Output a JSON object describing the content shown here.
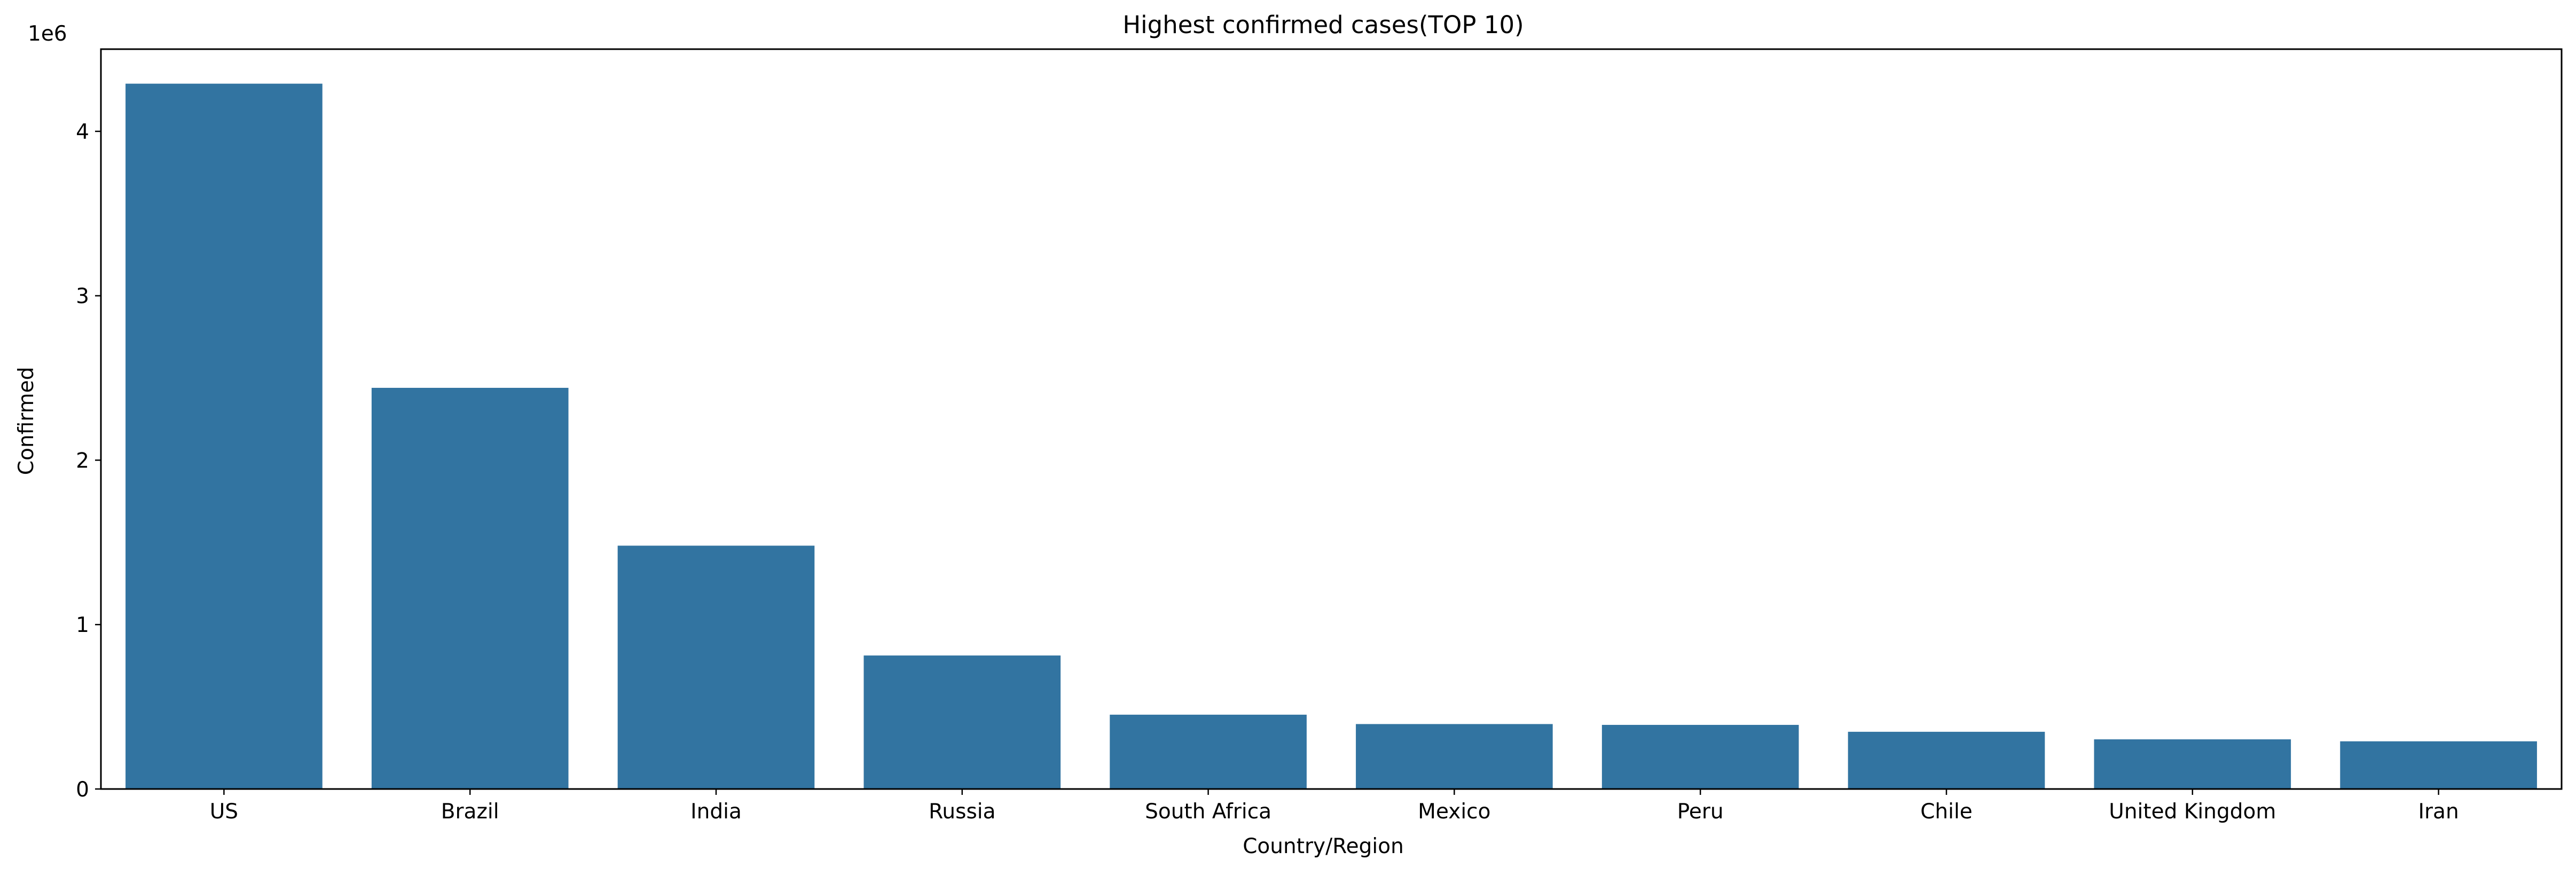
{
  "chart_data": {
    "type": "bar",
    "title": "Highest confirmed cases(TOP 10)",
    "xlabel": "Country/Region",
    "ylabel": "Confirmed",
    "offset_label": "1e6",
    "categories": [
      "US",
      "Brazil",
      "India",
      "Russia",
      "South Africa",
      "Mexico",
      "Peru",
      "Chile",
      "United Kingdom",
      "Iran"
    ],
    "values": [
      4290000,
      2440000,
      1480000,
      812000,
      452000,
      395000,
      390000,
      348000,
      302000,
      290000
    ],
    "ylim": [
      0,
      4500000
    ],
    "yticks": [
      0,
      1000000,
      2000000,
      3000000,
      4000000
    ],
    "ytick_labels": [
      "0",
      "1",
      "2",
      "3",
      "4"
    ],
    "grid": false,
    "colors": {
      "bar": "#3274a1",
      "axis": "#000000",
      "background": "#ffffff"
    }
  }
}
